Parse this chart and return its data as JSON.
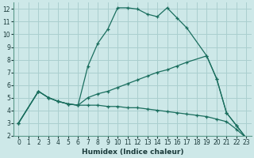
{
  "xlabel": "Humidex (Indice chaleur)",
  "bg_color": "#cde8e8",
  "grid_color": "#aacfcf",
  "line_color": "#1a6e5e",
  "xlim": [
    -0.5,
    23.5
  ],
  "ylim": [
    2,
    12.5
  ],
  "xticks": [
    0,
    1,
    2,
    3,
    4,
    5,
    6,
    7,
    8,
    9,
    10,
    11,
    12,
    13,
    14,
    15,
    16,
    17,
    18,
    19,
    20,
    21,
    22,
    23
  ],
  "yticks": [
    2,
    3,
    4,
    5,
    6,
    7,
    8,
    9,
    10,
    11,
    12
  ],
  "line1_x": [
    0,
    2,
    3,
    4,
    5,
    6,
    7,
    8,
    9,
    10,
    11,
    12,
    13,
    14,
    15,
    16,
    17,
    19,
    20,
    21,
    22,
    23
  ],
  "line1_y": [
    3,
    5.5,
    5.0,
    4.7,
    4.5,
    4.4,
    7.5,
    9.3,
    10.4,
    12.1,
    12.1,
    12.0,
    11.6,
    11.4,
    12.1,
    11.3,
    10.5,
    8.3,
    6.5,
    3.8,
    2.8,
    1.8
  ],
  "line2_x": [
    0,
    2,
    3,
    4,
    5,
    6,
    7,
    8,
    9,
    10,
    11,
    12,
    13,
    14,
    15,
    16,
    17,
    19,
    20,
    21,
    22,
    23
  ],
  "line2_y": [
    3,
    5.5,
    5.0,
    4.7,
    4.5,
    4.4,
    5.0,
    5.3,
    5.5,
    5.8,
    6.1,
    6.4,
    6.7,
    7.0,
    7.2,
    7.5,
    7.8,
    8.3,
    6.5,
    3.8,
    2.8,
    1.8
  ],
  "line3_x": [
    0,
    2,
    3,
    4,
    5,
    6,
    7,
    8,
    9,
    10,
    11,
    12,
    13,
    14,
    15,
    16,
    17,
    18,
    19,
    20,
    21,
    22,
    23
  ],
  "line3_y": [
    3,
    5.5,
    5.0,
    4.7,
    4.5,
    4.4,
    4.4,
    4.4,
    4.3,
    4.3,
    4.2,
    4.2,
    4.1,
    4.0,
    3.9,
    3.8,
    3.7,
    3.6,
    3.5,
    3.3,
    3.1,
    2.5,
    1.8
  ],
  "xlabel_fontsize": 6.5,
  "tick_fontsize": 5.5
}
